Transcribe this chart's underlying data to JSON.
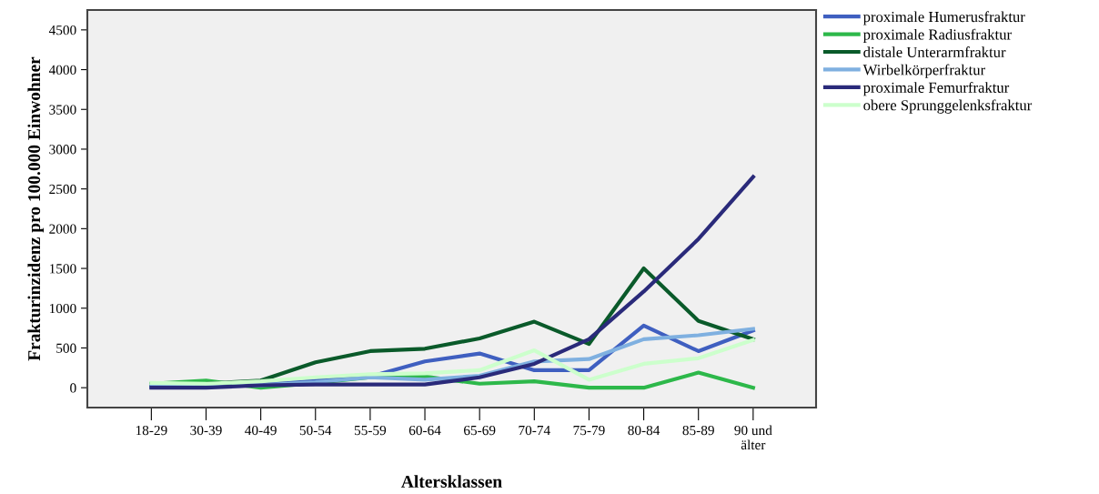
{
  "chart_data": {
    "type": "line",
    "xlabel": "Altersklassen",
    "ylabel": "Frakturinzidenz pro 100.000 Einwohner",
    "categories": [
      "18-29",
      "30-39",
      "40-49",
      "50-54",
      "55-59",
      "60-64",
      "65-69",
      "70-74",
      "75-79",
      "80-84",
      "85-89",
      "90 und älter"
    ],
    "series": [
      {
        "name": "proximale Humerusfraktur",
        "color": "#3f5fc0",
        "values": [
          10,
          10,
          40,
          90,
          140,
          330,
          430,
          220,
          220,
          780,
          460,
          720
        ]
      },
      {
        "name": "proximale Radiusfraktur",
        "color": "#2db84a",
        "values": [
          50,
          90,
          0,
          60,
          130,
          140,
          50,
          80,
          0,
          0,
          190,
          0
        ]
      },
      {
        "name": "distale Unterarmfraktur",
        "color": "#0a5a2a",
        "values": [
          40,
          50,
          90,
          320,
          460,
          490,
          620,
          830,
          550,
          1500,
          840,
          610
        ]
      },
      {
        "name": "Wirbelkörperfraktur",
        "color": "#7fb0e0",
        "values": [
          20,
          10,
          30,
          70,
          130,
          100,
          150,
          330,
          360,
          610,
          660,
          740
        ]
      },
      {
        "name": "proximale Femurfraktur",
        "color": "#2a2a7a",
        "values": [
          0,
          0,
          30,
          40,
          40,
          40,
          130,
          300,
          610,
          1210,
          1870,
          2650
        ]
      },
      {
        "name": "obere Sprunggelenksfraktur",
        "color": "#ccffcc",
        "values": [
          60,
          50,
          80,
          130,
          170,
          180,
          220,
          470,
          100,
          300,
          370,
          600
        ]
      }
    ],
    "ylim": [
      -250,
      4750
    ],
    "yticks": [
      0,
      500,
      1000,
      1500,
      2000,
      2500,
      3000,
      3500,
      4000,
      4500
    ],
    "grid": false,
    "legend": "top right",
    "marker": "none",
    "line_style": "solid"
  }
}
